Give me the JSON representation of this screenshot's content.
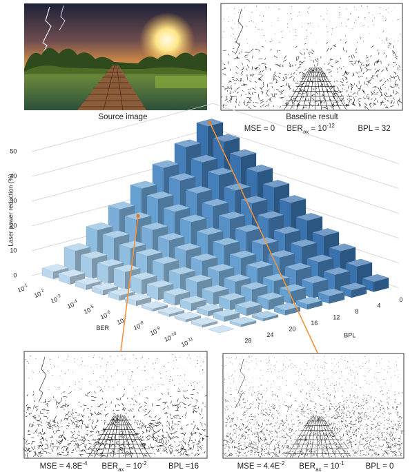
{
  "source": {
    "caption": "Source image"
  },
  "baseline": {
    "caption": "Baseline result",
    "mse": "MSE = 0",
    "ber": [
      {
        "t": "BER"
      },
      {
        "sub": "ax"
      },
      {
        "t": " = 10"
      },
      {
        "sup": "-12"
      }
    ],
    "bpl": "BPL = 32"
  },
  "chart_data": {
    "type": "bar3d",
    "y_label": "Laser power reduction (%)",
    "x_label": "BER",
    "z_label": "BPL",
    "categories": [
      {
        "base": "10",
        "exp": "-1"
      },
      {
        "base": "10",
        "exp": "-2"
      },
      {
        "base": "10",
        "exp": "-3"
      },
      {
        "base": "10",
        "exp": "-4"
      },
      {
        "base": "10",
        "exp": "-5"
      },
      {
        "base": "10",
        "exp": "-6"
      },
      {
        "base": "10",
        "exp": "-7"
      },
      {
        "base": "10",
        "exp": "-8"
      },
      {
        "base": "10",
        "exp": "-9"
      },
      {
        "base": "10",
        "exp": "-10"
      },
      {
        "base": "10",
        "exp": "-11"
      }
    ],
    "zticks": [
      0,
      4,
      8,
      12,
      16,
      20,
      24,
      28
    ],
    "colors": [
      "#3a72ad",
      "#4680bb",
      "#5690c6",
      "#66a0d0",
      "#7aaed8",
      "#8fbde0",
      "#a5cbe7",
      "#bcd8ee"
    ],
    "values": [
      [
        45,
        41,
        37,
        33,
        29,
        25,
        20,
        16,
        12,
        8,
        4
      ],
      [
        39,
        35,
        32,
        28,
        25,
        21,
        17,
        14,
        10,
        7,
        3
      ],
      [
        33,
        30,
        27,
        24,
        21,
        18,
        15,
        12,
        9,
        6,
        3
      ],
      [
        27,
        25,
        22,
        20,
        17,
        15,
        12,
        10,
        7,
        5,
        2
      ],
      [
        21,
        19,
        17,
        15,
        13,
        11,
        9,
        7,
        6,
        4,
        2
      ],
      [
        15,
        14,
        12,
        11,
        10,
        8,
        7,
        5,
        4,
        3,
        1
      ],
      [
        9,
        8,
        7,
        7,
        6,
        5,
        4,
        3,
        2,
        2,
        1
      ],
      [
        3,
        3,
        2,
        2,
        2,
        2,
        1,
        1,
        1,
        1,
        0
      ]
    ],
    "ylim": [
      0,
      50
    ],
    "yticks": [
      0,
      10,
      20,
      30,
      40,
      50
    ],
    "grid": true
  },
  "result_left": {
    "mse": [
      {
        "t": "MSE = 4.8E"
      },
      {
        "sup": "-4"
      }
    ],
    "ber": [
      {
        "t": "BER"
      },
      {
        "sub": "ax"
      },
      {
        "t": " = 10"
      },
      {
        "sup": "-2"
      }
    ],
    "bpl": "BPL =16"
  },
  "result_right": {
    "mse": [
      {
        "t": "MSE = 4.4E"
      },
      {
        "sup": "-2"
      }
    ],
    "ber": [
      {
        "t": "BER"
      },
      {
        "sub": "ax"
      },
      {
        "t": " = 10"
      },
      {
        "sup": "-1"
      }
    ],
    "bpl": "BPL = 0"
  }
}
